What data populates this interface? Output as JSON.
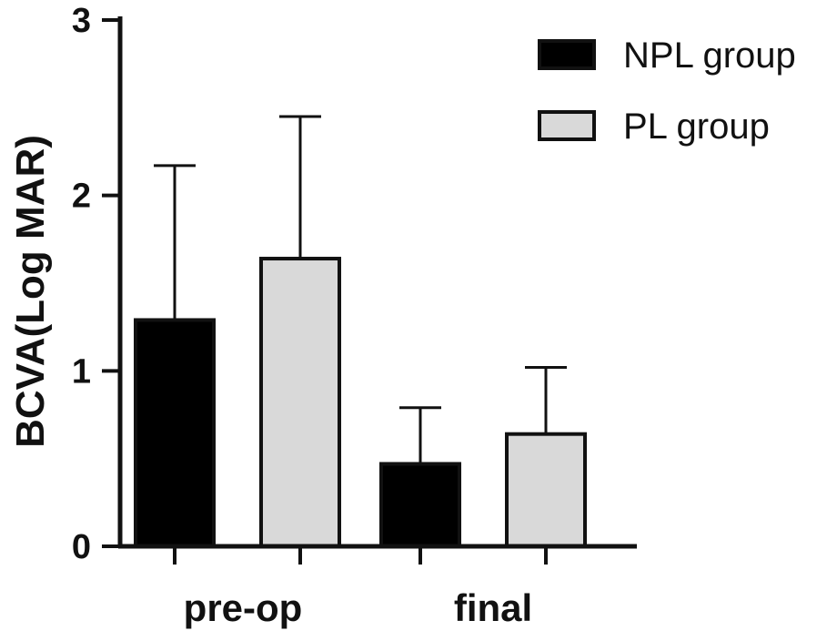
{
  "chart_data": {
    "type": "bar",
    "ylabel": "BCVA(Log MAR)",
    "xlabel": "",
    "categories": [
      "pre-op",
      "final"
    ],
    "ylim": [
      0,
      3
    ],
    "yticks": [
      "0",
      "1",
      "2",
      "3"
    ],
    "grid": false,
    "legend_position": "top-right",
    "series": [
      {
        "name": "NPL group",
        "color": "#000000",
        "values": [
          1.29,
          0.47
        ],
        "error_upper": [
          2.17,
          0.79
        ]
      },
      {
        "name": "PL group",
        "color": "#d9d9d9",
        "values": [
          1.64,
          0.64
        ],
        "error_upper": [
          2.45,
          1.02
        ]
      }
    ]
  }
}
